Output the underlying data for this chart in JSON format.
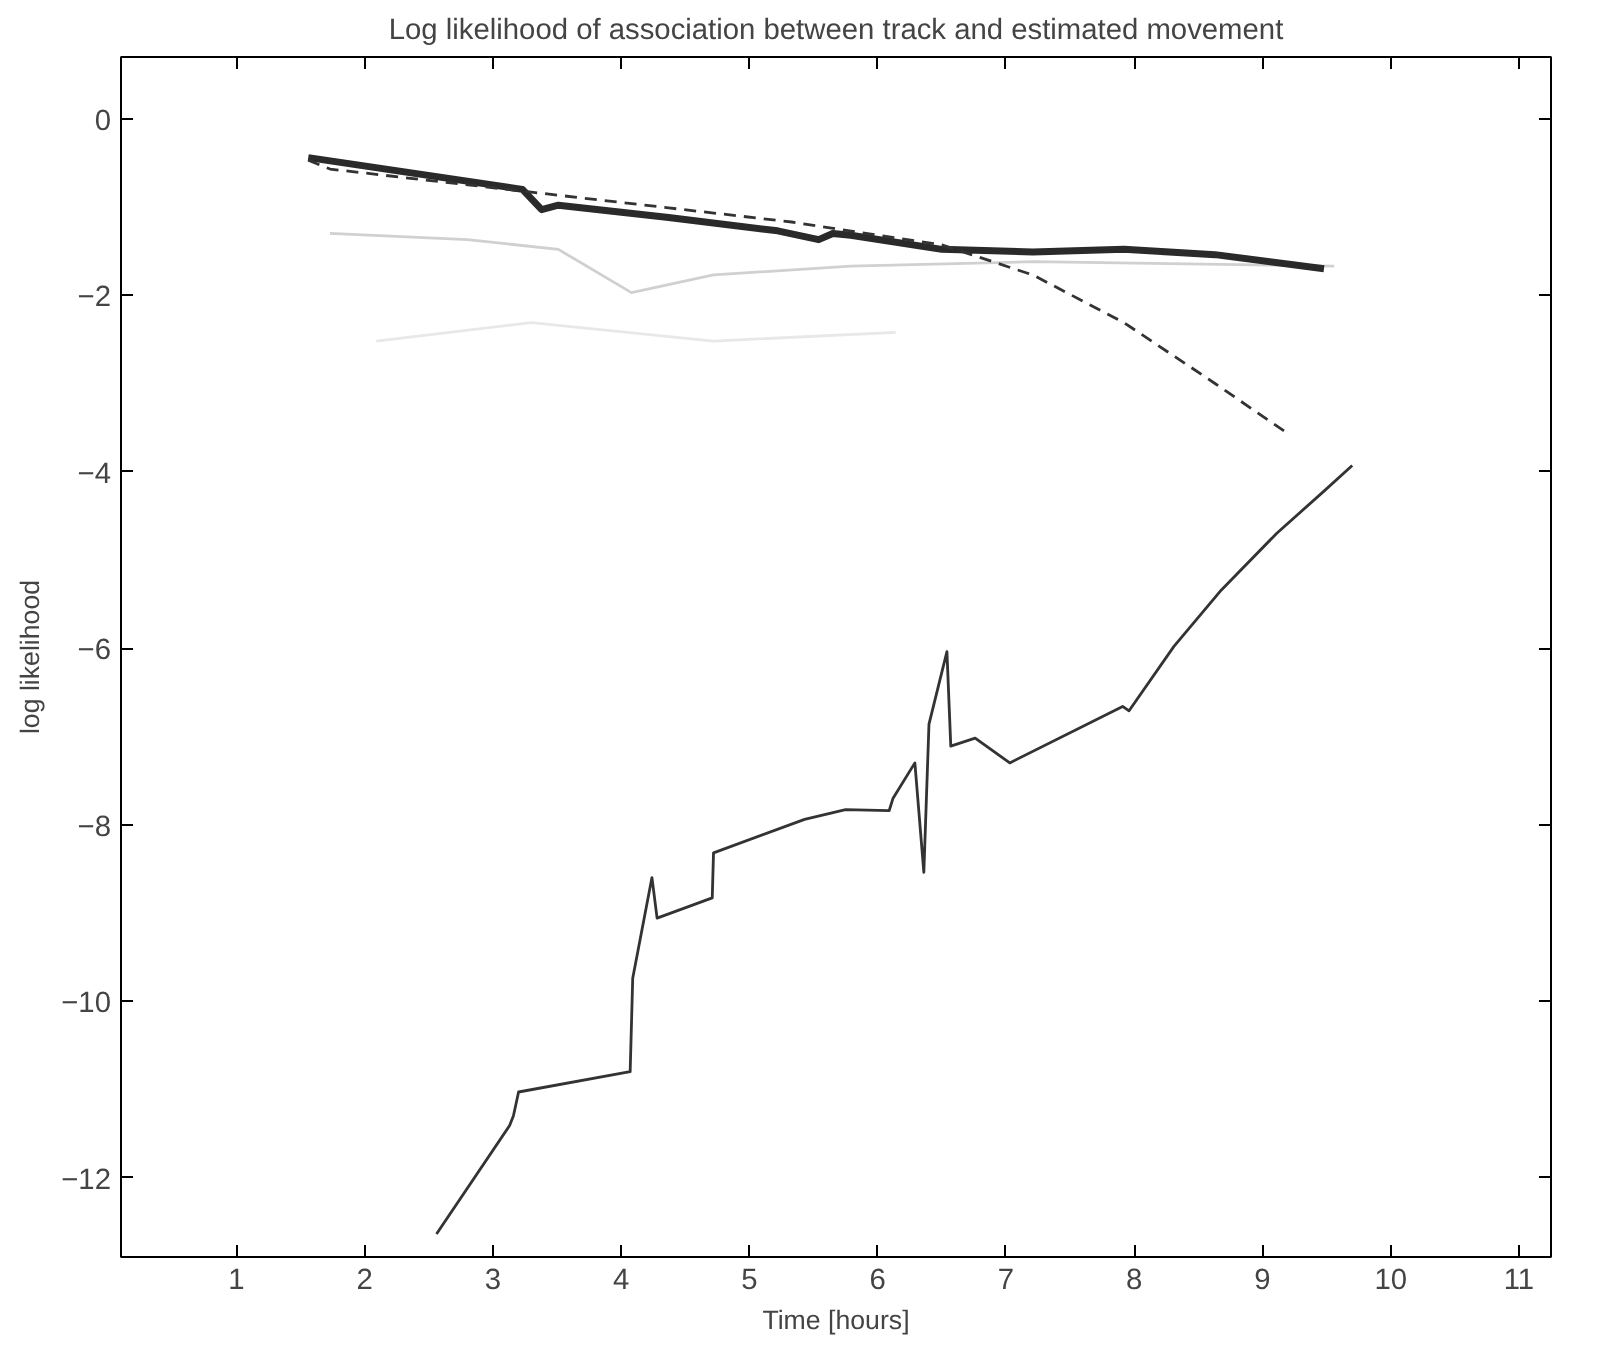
{
  "chart_data": {
    "type": "line",
    "title": "Log likelihood of association between track and estimated movement",
    "xlabel": "Time [hours]",
    "ylabel": "log likelihood",
    "xlim": [
      0.1,
      11.25
    ],
    "ylim": [
      -12.9,
      0.7
    ],
    "xticks": [
      1,
      2,
      3,
      4,
      5,
      6,
      7,
      8,
      9,
      10,
      11
    ],
    "yticks": [
      0,
      -2,
      -4,
      -6,
      -8,
      -10,
      -12
    ],
    "series": [
      {
        "color": "#e8e8e8",
        "line_style": "solid",
        "x": [
          2.09,
          3.3,
          4.72,
          6.14
        ],
        "values": [
          -2.52,
          -2.31,
          -2.52,
          -2.42
        ]
      },
      {
        "color": "#d0d0d0",
        "line_style": "solid",
        "x": [
          1.73,
          2.8,
          3.51,
          4.08,
          4.72,
          5.79,
          7.21,
          9.56
        ],
        "values": [
          -1.3,
          -1.37,
          -1.48,
          -1.97,
          -1.77,
          -1.67,
          -1.62,
          -1.67
        ]
      },
      {
        "color": "#2a2a2a",
        "line_style": "solid",
        "x": [
          1.56,
          3.23,
          3.38,
          3.51,
          4.37,
          5.22,
          5.54,
          5.65,
          5.79,
          6.5,
          7.21,
          7.92,
          8.63,
          9.48
        ],
        "values": [
          -0.44,
          -0.8,
          -1.03,
          -0.98,
          -1.12,
          -1.27,
          -1.37,
          -1.3,
          -1.32,
          -1.48,
          -1.51,
          -1.48,
          -1.54,
          -1.7
        ]
      },
      {
        "color": "#333333",
        "line_style": "dashed",
        "x": [
          1.56,
          1.73,
          3.23,
          4.37,
          5.33,
          6.5,
          7.21,
          7.92,
          8.63,
          9.2
        ],
        "values": [
          -0.47,
          -0.57,
          -0.82,
          -1.01,
          -1.17,
          -1.43,
          -1.77,
          -2.31,
          -3.0,
          -3.57
        ]
      },
      {
        "color": "#333333",
        "line_style": "solid",
        "x": [
          2.56,
          3.13,
          3.16,
          3.2,
          4.07,
          4.09,
          4.24,
          4.28,
          4.71,
          4.72,
          5.43,
          5.75,
          6.09,
          6.12,
          6.29,
          6.36,
          6.4,
          6.54,
          6.57,
          6.76,
          7.03,
          7.91,
          7.96,
          8.31,
          8.68,
          9.11,
          9.48,
          9.7
        ],
        "values": [
          -12.64,
          -11.41,
          -11.3,
          -11.03,
          -10.8,
          -9.74,
          -8.6,
          -9.06,
          -8.83,
          -8.32,
          -7.94,
          -7.83,
          -7.84,
          -7.7,
          -7.3,
          -8.54,
          -6.86,
          -6.04,
          -7.11,
          -7.02,
          -7.3,
          -6.66,
          -6.71,
          -5.98,
          -5.34,
          -4.7,
          -4.22,
          -3.93
        ]
      }
    ]
  }
}
